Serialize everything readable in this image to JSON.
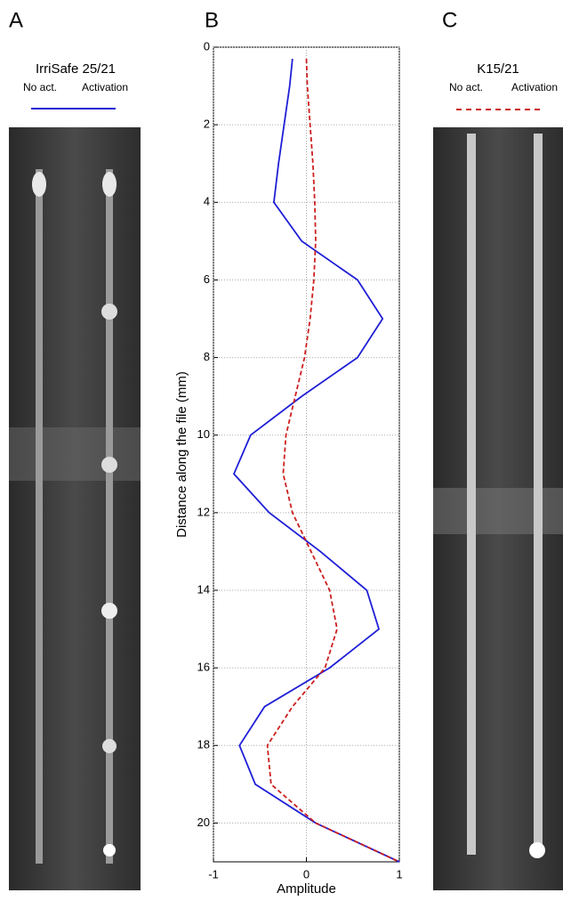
{
  "panels": {
    "a": {
      "letter": "A",
      "title": "IrriSafe 25/21",
      "left_label": "No act.",
      "right_label": "Activation"
    },
    "b": {
      "letter": "B"
    },
    "c": {
      "letter": "C",
      "title": "K15/21",
      "left_label": "No act.",
      "right_label": "Activation"
    }
  },
  "chart_data": {
    "type": "line",
    "x_label": "Amplitude",
    "y_label": "Distance along the file (mm)",
    "x": [
      0.3,
      1,
      2,
      3,
      4,
      5,
      6,
      7,
      8,
      9,
      10,
      11,
      12,
      13,
      14,
      15,
      16,
      17,
      18,
      19,
      20,
      21
    ],
    "series": [
      {
        "name": "IrriSafe 25/21",
        "color": "#1f1fd6",
        "dash": false,
        "values": [
          -0.15,
          -0.18,
          -0.24,
          -0.3,
          -0.35,
          -0.05,
          0.55,
          0.82,
          0.55,
          -0.05,
          -0.6,
          -0.78,
          -0.4,
          0.15,
          0.65,
          0.78,
          0.25,
          -0.45,
          -0.72,
          -0.55,
          0.1,
          1.0
        ]
      },
      {
        "name": "K15/21",
        "color": "#cc1f1f",
        "dash": true,
        "values": [
          0,
          0.01,
          0.04,
          0.07,
          0.09,
          0.1,
          0.08,
          0.04,
          -0.02,
          -0.12,
          -0.22,
          -0.25,
          -0.15,
          0.05,
          0.25,
          0.33,
          0.2,
          -0.15,
          -0.42,
          -0.38,
          0.1,
          1.0
        ]
      }
    ],
    "xlim": [
      -1,
      1
    ],
    "xticks": [
      -1,
      0,
      1
    ],
    "ylim": [
      0,
      21
    ],
    "y_reversed": true,
    "yticks": [
      0,
      2,
      4,
      6,
      8,
      10,
      12,
      14,
      16,
      18,
      20
    ],
    "grid": true
  }
}
